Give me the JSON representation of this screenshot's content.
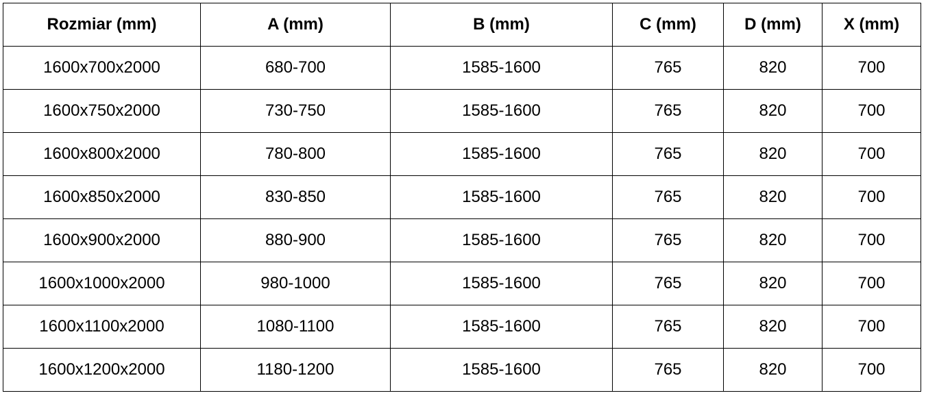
{
  "table": {
    "headers": [
      "Rozmiar (mm)",
      "A (mm)",
      "B (mm)",
      "C (mm)",
      "D (mm)",
      "X (mm)"
    ],
    "rows": [
      [
        "1600x700x2000",
        "680-700",
        "1585-1600",
        "765",
        "820",
        "700"
      ],
      [
        "1600x750x2000",
        "730-750",
        "1585-1600",
        "765",
        "820",
        "700"
      ],
      [
        "1600x800x2000",
        "780-800",
        "1585-1600",
        "765",
        "820",
        "700"
      ],
      [
        "1600x850x2000",
        "830-850",
        "1585-1600",
        "765",
        "820",
        "700"
      ],
      [
        "1600x900x2000",
        "880-900",
        "1585-1600",
        "765",
        "820",
        "700"
      ],
      [
        "1600x1000x2000",
        "980-1000",
        "1585-1600",
        "765",
        "820",
        "700"
      ],
      [
        "1600x1100x2000",
        "1080-1100",
        "1585-1600",
        "765",
        "820",
        "700"
      ],
      [
        "1600x1200x2000",
        "1180-1200",
        "1585-1600",
        "765",
        "820",
        "700"
      ]
    ]
  }
}
